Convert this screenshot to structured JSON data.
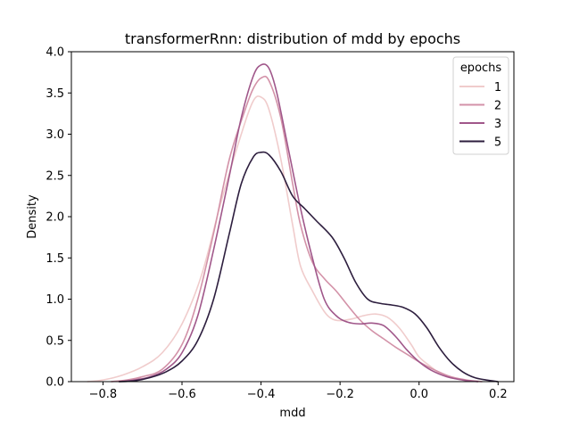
{
  "chart_data": {
    "type": "line",
    "title": "transformerRnn: distribution of mdd by epochs",
    "xlabel": "mdd",
    "ylabel": "Density",
    "xlim": [
      -0.88,
      0.24
    ],
    "ylim": [
      0,
      4.0
    ],
    "xticks": [
      -0.8,
      -0.6,
      -0.4,
      -0.2,
      0.0,
      0.2
    ],
    "xtick_labels": [
      "−0.8",
      "−0.6",
      "−0.4",
      "−0.2",
      "0.0",
      "0.2"
    ],
    "yticks": [
      0.0,
      0.5,
      1.0,
      1.5,
      2.0,
      2.5,
      3.0,
      3.5,
      4.0
    ],
    "ytick_labels": [
      "0.0",
      "0.5",
      "1.0",
      "1.5",
      "2.0",
      "2.5",
      "3.0",
      "3.5",
      "4.0"
    ],
    "grid": false,
    "legend": {
      "title": "epochs",
      "placement": "top-right"
    },
    "series": [
      {
        "name": "1",
        "color": "#f0cccc",
        "points": [
          [
            -0.84,
            0.0
          ],
          [
            -0.8,
            0.02
          ],
          [
            -0.75,
            0.08
          ],
          [
            -0.7,
            0.18
          ],
          [
            -0.65,
            0.35
          ],
          [
            -0.6,
            0.7
          ],
          [
            -0.55,
            1.3
          ],
          [
            -0.5,
            2.2
          ],
          [
            -0.45,
            3.0
          ],
          [
            -0.42,
            3.4
          ],
          [
            -0.4,
            3.45
          ],
          [
            -0.38,
            3.3
          ],
          [
            -0.35,
            2.7
          ],
          [
            -0.32,
            1.9
          ],
          [
            -0.3,
            1.4
          ],
          [
            -0.27,
            1.1
          ],
          [
            -0.24,
            0.85
          ],
          [
            -0.22,
            0.76
          ],
          [
            -0.2,
            0.74
          ],
          [
            -0.17,
            0.76
          ],
          [
            -0.14,
            0.8
          ],
          [
            -0.11,
            0.82
          ],
          [
            -0.08,
            0.78
          ],
          [
            -0.05,
            0.65
          ],
          [
            -0.02,
            0.45
          ],
          [
            0.0,
            0.3
          ],
          [
            0.03,
            0.18
          ],
          [
            0.06,
            0.08
          ],
          [
            0.1,
            0.03
          ],
          [
            0.15,
            0.0
          ]
        ]
      },
      {
        "name": "2",
        "color": "#d392a8",
        "points": [
          [
            -0.78,
            0.0
          ],
          [
            -0.74,
            0.02
          ],
          [
            -0.7,
            0.06
          ],
          [
            -0.65,
            0.15
          ],
          [
            -0.6,
            0.45
          ],
          [
            -0.56,
            1.0
          ],
          [
            -0.52,
            1.8
          ],
          [
            -0.48,
            2.7
          ],
          [
            -0.44,
            3.3
          ],
          [
            -0.42,
            3.55
          ],
          [
            -0.4,
            3.68
          ],
          [
            -0.38,
            3.65
          ],
          [
            -0.35,
            3.2
          ],
          [
            -0.32,
            2.4
          ],
          [
            -0.3,
            1.9
          ],
          [
            -0.27,
            1.45
          ],
          [
            -0.24,
            1.25
          ],
          [
            -0.21,
            1.1
          ],
          [
            -0.18,
            0.92
          ],
          [
            -0.15,
            0.75
          ],
          [
            -0.12,
            0.62
          ],
          [
            -0.09,
            0.52
          ],
          [
            -0.06,
            0.42
          ],
          [
            -0.03,
            0.33
          ],
          [
            0.0,
            0.24
          ],
          [
            0.04,
            0.14
          ],
          [
            0.08,
            0.06
          ],
          [
            0.12,
            0.02
          ],
          [
            0.16,
            0.0
          ]
        ]
      },
      {
        "name": "3",
        "color": "#a0578a",
        "points": [
          [
            -0.76,
            0.0
          ],
          [
            -0.72,
            0.02
          ],
          [
            -0.68,
            0.06
          ],
          [
            -0.64,
            0.15
          ],
          [
            -0.6,
            0.35
          ],
          [
            -0.56,
            0.8
          ],
          [
            -0.52,
            1.6
          ],
          [
            -0.48,
            2.5
          ],
          [
            -0.45,
            3.2
          ],
          [
            -0.42,
            3.7
          ],
          [
            -0.4,
            3.84
          ],
          [
            -0.38,
            3.8
          ],
          [
            -0.36,
            3.5
          ],
          [
            -0.33,
            2.8
          ],
          [
            -0.3,
            2.1
          ],
          [
            -0.27,
            1.5
          ],
          [
            -0.24,
            1.0
          ],
          [
            -0.21,
            0.8
          ],
          [
            -0.18,
            0.72
          ],
          [
            -0.15,
            0.7
          ],
          [
            -0.12,
            0.71
          ],
          [
            -0.09,
            0.68
          ],
          [
            -0.06,
            0.55
          ],
          [
            -0.03,
            0.38
          ],
          [
            0.0,
            0.24
          ],
          [
            0.03,
            0.14
          ],
          [
            0.07,
            0.06
          ],
          [
            0.11,
            0.02
          ],
          [
            0.15,
            0.0
          ]
        ]
      },
      {
        "name": "5",
        "color": "#2d1e3e",
        "points": [
          [
            -0.76,
            0.0
          ],
          [
            -0.72,
            0.01
          ],
          [
            -0.68,
            0.05
          ],
          [
            -0.64,
            0.12
          ],
          [
            -0.6,
            0.25
          ],
          [
            -0.56,
            0.5
          ],
          [
            -0.52,
            1.0
          ],
          [
            -0.48,
            1.8
          ],
          [
            -0.45,
            2.4
          ],
          [
            -0.42,
            2.72
          ],
          [
            -0.4,
            2.78
          ],
          [
            -0.38,
            2.75
          ],
          [
            -0.35,
            2.55
          ],
          [
            -0.32,
            2.25
          ],
          [
            -0.29,
            2.1
          ],
          [
            -0.26,
            1.95
          ],
          [
            -0.22,
            1.75
          ],
          [
            -0.19,
            1.5
          ],
          [
            -0.16,
            1.2
          ],
          [
            -0.13,
            1.0
          ],
          [
            -0.1,
            0.95
          ],
          [
            -0.07,
            0.93
          ],
          [
            -0.04,
            0.9
          ],
          [
            -0.01,
            0.82
          ],
          [
            0.02,
            0.65
          ],
          [
            0.05,
            0.42
          ],
          [
            0.08,
            0.24
          ],
          [
            0.11,
            0.12
          ],
          [
            0.14,
            0.05
          ],
          [
            0.17,
            0.02
          ],
          [
            0.2,
            0.0
          ]
        ]
      }
    ]
  }
}
